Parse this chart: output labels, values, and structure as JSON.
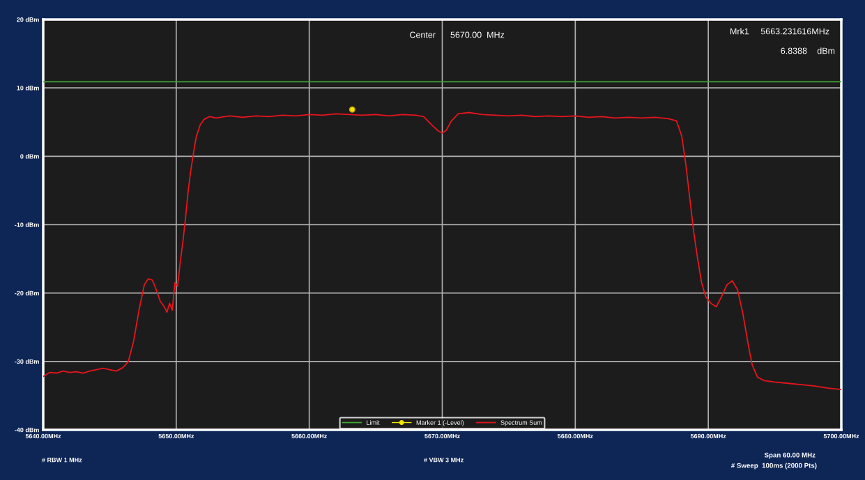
{
  "chart_data": {
    "type": "line",
    "xlim": [
      5640,
      5700
    ],
    "xticks": [
      {
        "value": 5640,
        "label": "5640.00MHz"
      },
      {
        "value": 5650,
        "label": "5650.00MHz"
      },
      {
        "value": 5660,
        "label": "5660.00MHz"
      },
      {
        "value": 5670,
        "label": "5670.00MHz"
      },
      {
        "value": 5680,
        "label": "5680.00MHz"
      },
      {
        "value": 5690,
        "label": "5690.00MHz"
      },
      {
        "value": 5700,
        "label": "5700.00MHz"
      }
    ],
    "ylim": [
      -40,
      20
    ],
    "yticks": [
      {
        "value": -40,
        "label": "-40 dBm"
      },
      {
        "value": -30,
        "label": "-30 dBm"
      },
      {
        "value": -20,
        "label": "-20 dBm"
      },
      {
        "value": -10,
        "label": "-10 dBm"
      },
      {
        "value": 0,
        "label": "0 dBm"
      },
      {
        "value": 10,
        "label": "10 dBm"
      },
      {
        "value": 20,
        "label": "20 dBm"
      }
    ],
    "grid": true,
    "legend": "bottom",
    "series": [
      {
        "name": "Limit",
        "color": "#3fa535",
        "x": [
          5640,
          5700
        ],
        "values": [
          10.9,
          10.9
        ]
      },
      {
        "name": "Marker 1 (-Level)",
        "type": "scatter",
        "marker": "circle",
        "color": "#f2e600",
        "x": [
          5663.231616
        ],
        "values": [
          6.8388
        ]
      },
      {
        "name": "Spectrum Sum",
        "color": "#e8141c",
        "x": [
          5640,
          5640.5,
          5641,
          5641.5,
          5642,
          5642.5,
          5643,
          5643.5,
          5644,
          5644.5,
          5645,
          5645.5,
          5646,
          5646.4,
          5646.8,
          5647.2,
          5647.6,
          5647.9,
          5648.2,
          5648.5,
          5648.8,
          5649.1,
          5649.3,
          5649.5,
          5649.7,
          5649.9,
          5650.1,
          5650.3,
          5650.5,
          5650.7,
          5650.9,
          5651.1,
          5651.3,
          5651.5,
          5651.8,
          5652.1,
          5652.5,
          5653,
          5654,
          5655,
          5656,
          5657,
          5658,
          5659,
          5660,
          5661,
          5662,
          5663,
          5664,
          5665,
          5666,
          5667,
          5668,
          5668.6,
          5669.2,
          5669.7,
          5670,
          5670.3,
          5670.7,
          5671.2,
          5672,
          5673,
          5674,
          5675,
          5676,
          5677,
          5678,
          5679,
          5680,
          5681,
          5682,
          5683,
          5684,
          5685,
          5686,
          5687,
          5687.6,
          5688,
          5688.3,
          5688.6,
          5688.9,
          5689.2,
          5689.5,
          5689.8,
          5690.2,
          5690.6,
          5691,
          5691.4,
          5691.8,
          5692.2,
          5692.6,
          5693,
          5693.3,
          5693.7,
          5694.2,
          5695,
          5696,
          5697,
          5698,
          5699,
          5700
        ],
        "values": [
          -32.2,
          -31.6,
          -31.7,
          -31.4,
          -31.6,
          -31.5,
          -31.7,
          -31.4,
          -31.2,
          -31.0,
          -31.2,
          -31.4,
          -30.9,
          -30.0,
          -27,
          -22.5,
          -18.8,
          -17.9,
          -18.1,
          -19.5,
          -21.2,
          -22.0,
          -22.8,
          -21.5,
          -22.5,
          -18.5,
          -19.0,
          -15.5,
          -12.5,
          -9,
          -5,
          -2,
          0.5,
          2.8,
          4.6,
          5.4,
          5.8,
          5.6,
          5.9,
          5.7,
          5.9,
          5.8,
          6.0,
          5.9,
          6.1,
          6.0,
          6.2,
          6.1,
          6.0,
          6.1,
          5.9,
          6.1,
          6.0,
          5.8,
          4.6,
          3.7,
          3.4,
          3.8,
          5.2,
          6.2,
          6.4,
          6.1,
          6.0,
          5.9,
          6.0,
          5.8,
          5.9,
          5.8,
          5.9,
          5.7,
          5.8,
          5.6,
          5.7,
          5.6,
          5.7,
          5.5,
          5.2,
          3.0,
          -1,
          -6,
          -11,
          -15,
          -18.5,
          -20.5,
          -21.5,
          -22.0,
          -20.5,
          -18.8,
          -18.2,
          -19.5,
          -23,
          -27.5,
          -30.5,
          -32.3,
          -32.8,
          -33.0,
          -33.2,
          -33.4,
          -33.6,
          -33.9,
          -34.1
        ]
      }
    ],
    "annotations": [
      "Center",
      "5670.00  MHz",
      "Mrk1",
      "5663.231616MHz",
      "6.8388",
      "dBm",
      "# RBW 1 MHz",
      "# VBW 3 MHz",
      "Span 60.00 MHz",
      "# Sweep  100ms (2000 Pts)"
    ]
  }
}
